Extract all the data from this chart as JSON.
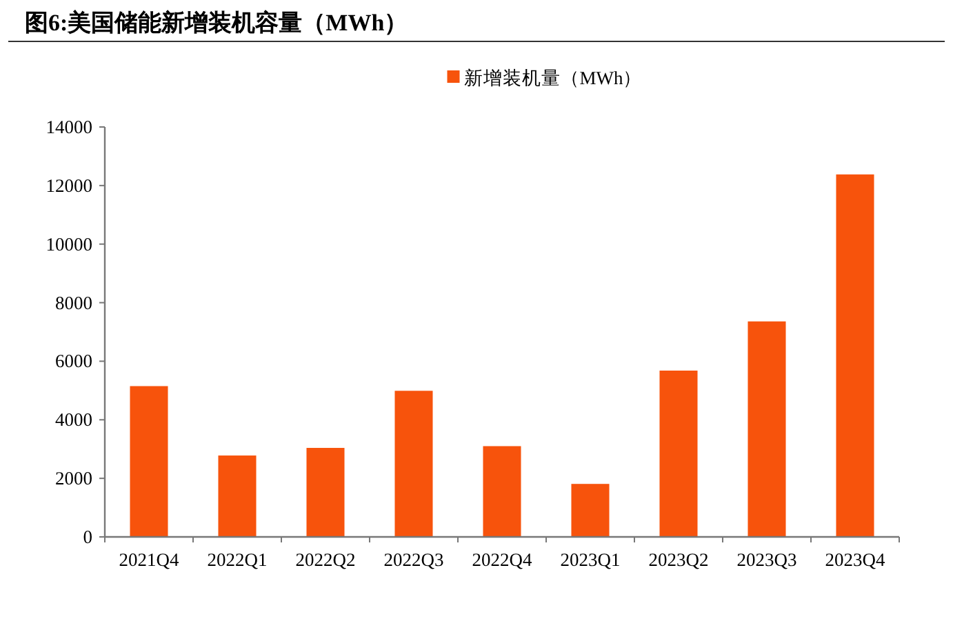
{
  "chart_data": {
    "type": "bar",
    "title": "图6:美国储能新增装机容量（MWh）",
    "categories": [
      "2021Q4",
      "2022Q1",
      "2022Q2",
      "2022Q3",
      "2022Q4",
      "2023Q1",
      "2023Q2",
      "2023Q3",
      "2023Q4"
    ],
    "series": [
      {
        "name": "新增装机量（MWh）",
        "color": "#f7530c",
        "values": [
          5150,
          2780,
          3040,
          4990,
          3100,
          1810,
          5680,
          7360,
          12380
        ]
      }
    ],
    "ylim": [
      0,
      14000
    ],
    "yticks": [
      0,
      2000,
      4000,
      6000,
      8000,
      10000,
      12000,
      14000
    ],
    "legend": "top",
    "grid": false
  }
}
